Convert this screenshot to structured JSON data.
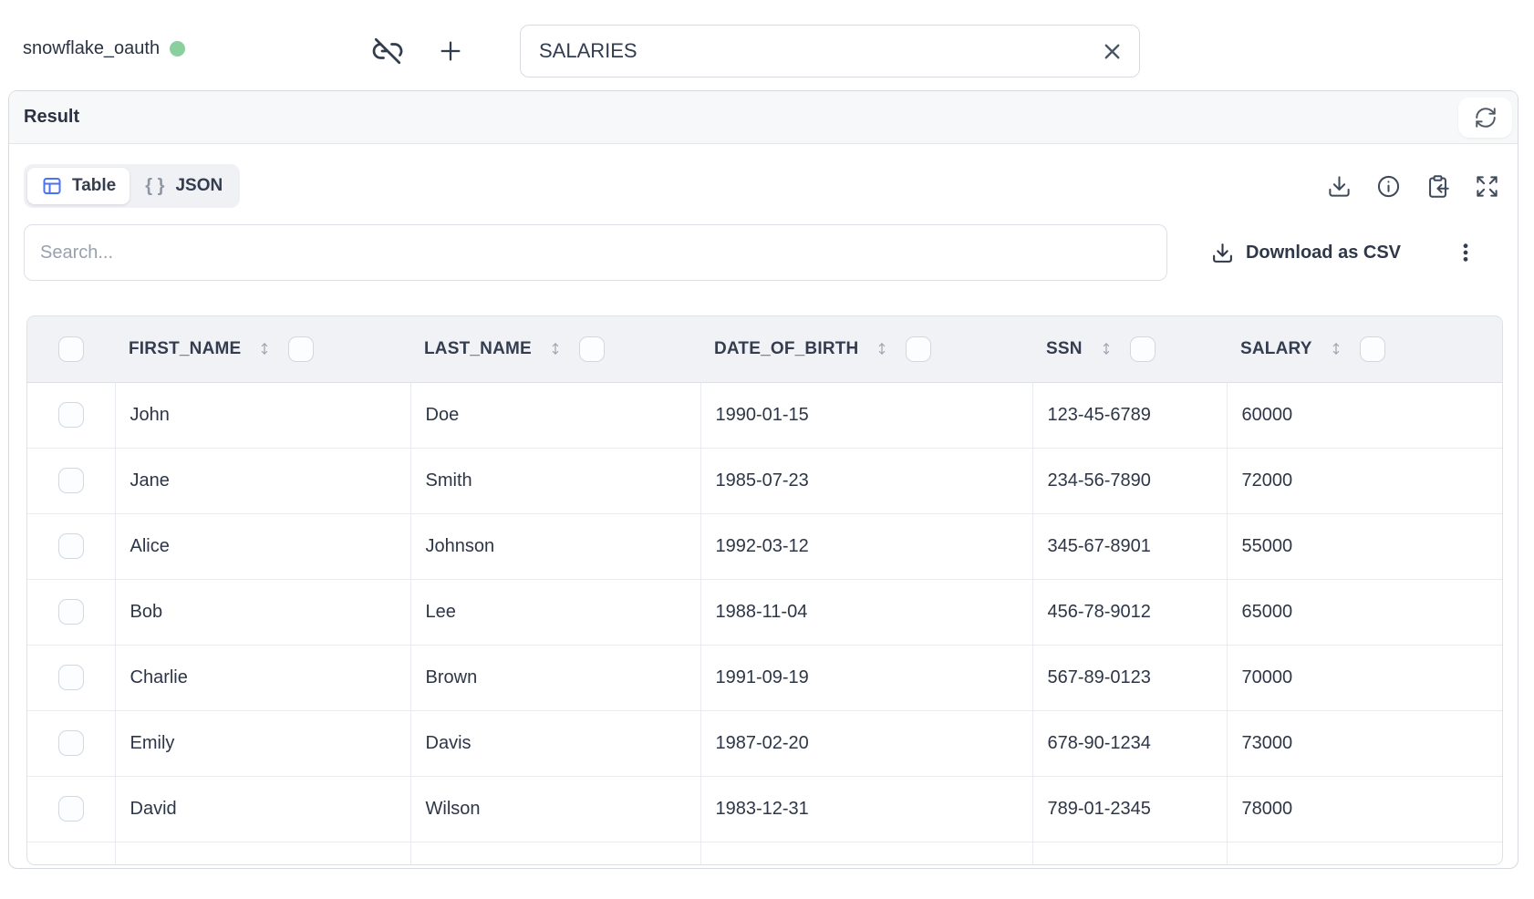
{
  "topbar": {
    "connection": {
      "name": "snowflake_oauth",
      "status_color": "#8ccf9f"
    },
    "table_selector": {
      "value": "SALARIES"
    }
  },
  "result": {
    "title": "Result",
    "view_tabs": [
      {
        "label": "Table",
        "active": true
      },
      {
        "label": "JSON",
        "active": false
      }
    ],
    "search": {
      "placeholder": "Search..."
    },
    "actions": {
      "download_csv": "Download as CSV"
    }
  },
  "table": {
    "columns": [
      "FIRST_NAME",
      "LAST_NAME",
      "DATE_OF_BIRTH",
      "SSN",
      "SALARY"
    ],
    "rows": [
      [
        "John",
        "Doe",
        "1990-01-15",
        "123-45-6789",
        "60000"
      ],
      [
        "Jane",
        "Smith",
        "1985-07-23",
        "234-56-7890",
        "72000"
      ],
      [
        "Alice",
        "Johnson",
        "1992-03-12",
        "345-67-8901",
        "55000"
      ],
      [
        "Bob",
        "Lee",
        "1988-11-04",
        "456-78-9012",
        "65000"
      ],
      [
        "Charlie",
        "Brown",
        "1991-09-19",
        "567-89-0123",
        "70000"
      ],
      [
        "Emily",
        "Davis",
        "1987-02-20",
        "678-90-1234",
        "73000"
      ],
      [
        "David",
        "Wilson",
        "1983-12-31",
        "789-01-2345",
        "78000"
      ]
    ]
  },
  "colors": {
    "accent_blue": "#4a72f5",
    "status_green": "#8ccf9f"
  }
}
